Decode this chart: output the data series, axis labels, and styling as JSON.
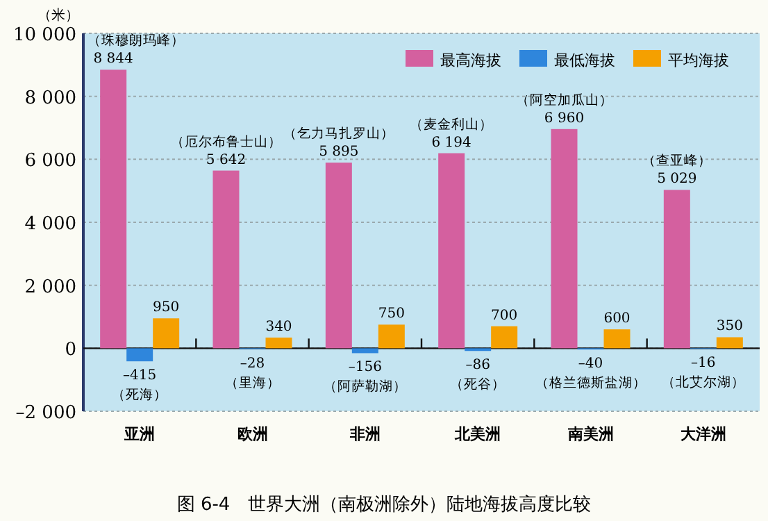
{
  "chart_data": {
    "type": "bar",
    "title": "图 6-4　世界大洲（南极洲除外）陆地海拔高度比较",
    "ylabel": "（米）",
    "categories": [
      "亚洲",
      "欧洲",
      "非洲",
      "北美洲",
      "南美洲",
      "大洋洲"
    ],
    "series": [
      {
        "name": "最高海拔",
        "color": "#d4609f",
        "values": [
          8844,
          5642,
          5895,
          6194,
          6960,
          5029
        ],
        "value_labels": [
          "8 844",
          "5 642",
          "5 895",
          "6 194",
          "6 960",
          "5 029"
        ]
      },
      {
        "name": "最低海拔",
        "color": "#2f86dc",
        "values": [
          -415,
          -28,
          -156,
          -86,
          -40,
          -16
        ],
        "value_labels": [
          "–415",
          "–28",
          "–156",
          "–86",
          "–40",
          "–16"
        ]
      },
      {
        "name": "平均海拔",
        "color": "#f5a000",
        "values": [
          950,
          340,
          750,
          700,
          600,
          350
        ],
        "value_labels": [
          "950",
          "340",
          "750",
          "700",
          "600",
          "350"
        ]
      }
    ],
    "ylim": [
      -2000,
      10000
    ],
    "yticks": [
      {
        "value": -2000,
        "label": "–2 000"
      },
      0,
      {
        "value": 2000,
        "label": "2 000"
      },
      {
        "value": 4000,
        "label": "4 000"
      },
      {
        "value": 6000,
        "label": "6 000"
      },
      {
        "value": 8000,
        "label": "8 000"
      },
      {
        "value": 10000,
        "label": "10 000"
      }
    ],
    "grid": "y",
    "legend": "top right",
    "annotations": [
      "（珠穆朗玛峰）",
      "（厄尔布鲁士山）",
      "（乞力马扎罗山）",
      "（麦金利山）",
      "（阿空加瓜山）",
      "（查亚峰）",
      {
        "text": "（死海）",
        "x": "亚洲",
        "y": -415
      },
      {
        "text": "（里海）",
        "x": "欧洲",
        "y": -28
      },
      {
        "text": "（阿萨勒湖）",
        "x": "非洲",
        "y": -156
      },
      {
        "text": "（死谷）",
        "x": "北美洲",
        "y": -86
      },
      {
        "text": "（格兰德斯盐湖）",
        "x": "南美洲",
        "y": -40
      },
      {
        "text": "（北艾尔湖）",
        "x": "大洋洲",
        "y": -16
      }
    ]
  }
}
